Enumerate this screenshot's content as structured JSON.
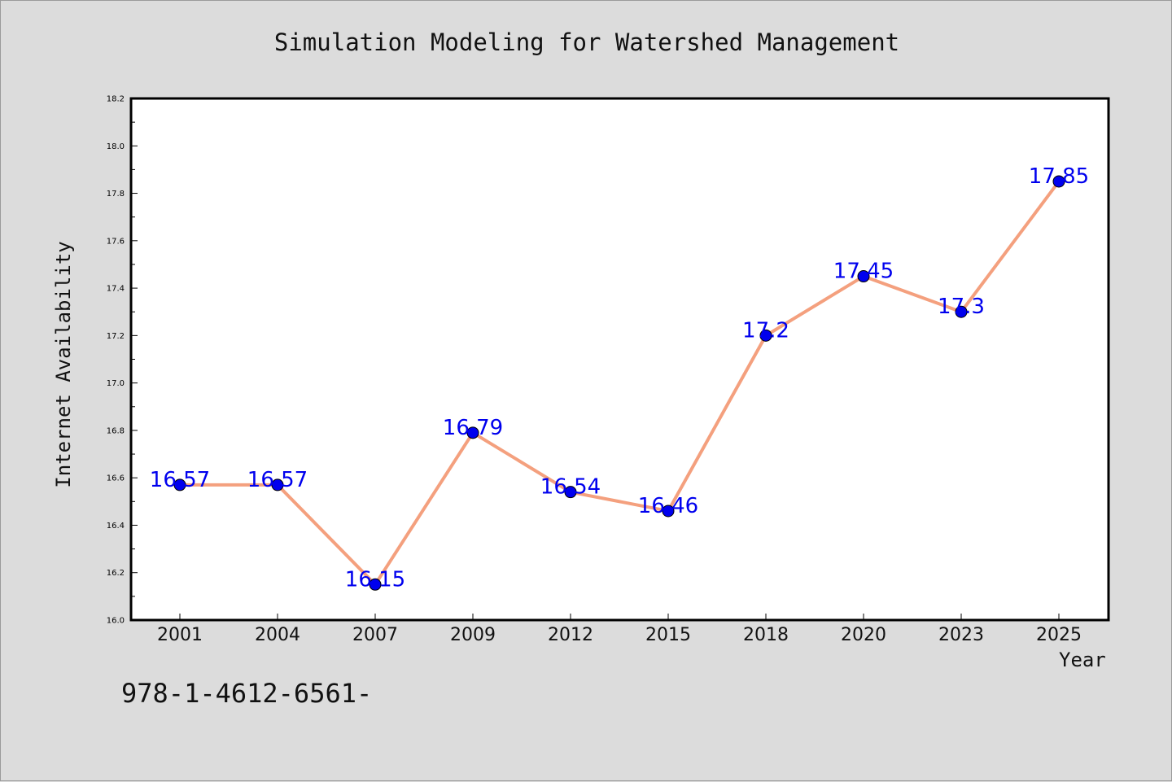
{
  "chart_data": {
    "type": "line",
    "title": "Simulation Modeling for Watershed Management",
    "xlabel": "Year",
    "ylabel": "Internet Availability",
    "categories": [
      "2001",
      "2004",
      "2007",
      "2009",
      "2012",
      "2015",
      "2018",
      "2020",
      "2023",
      "2025"
    ],
    "series": [
      {
        "values": [
          16.57,
          16.57,
          16.15,
          16.79,
          16.54,
          16.46,
          17.2,
          17.45,
          17.3,
          17.85
        ]
      }
    ],
    "data_labels": [
      "16.57",
      "16.57",
      "16.15",
      "16.79",
      "16.54",
      "16.46",
      "17.2",
      "17.45",
      "17.3",
      "17.85"
    ],
    "ylim": [
      16.0,
      18.2
    ],
    "y_ticks": [
      "16.0",
      "16.2",
      "16.4",
      "16.6",
      "16.8",
      "17.0",
      "17.2",
      "17.4",
      "17.6",
      "17.8",
      "18.0",
      "18.2"
    ],
    "grid": false,
    "line_color": "#f4a07e",
    "marker_color": "#0000ee",
    "label_color": "#0000ee"
  },
  "footnote": "978-1-4612-6561-"
}
